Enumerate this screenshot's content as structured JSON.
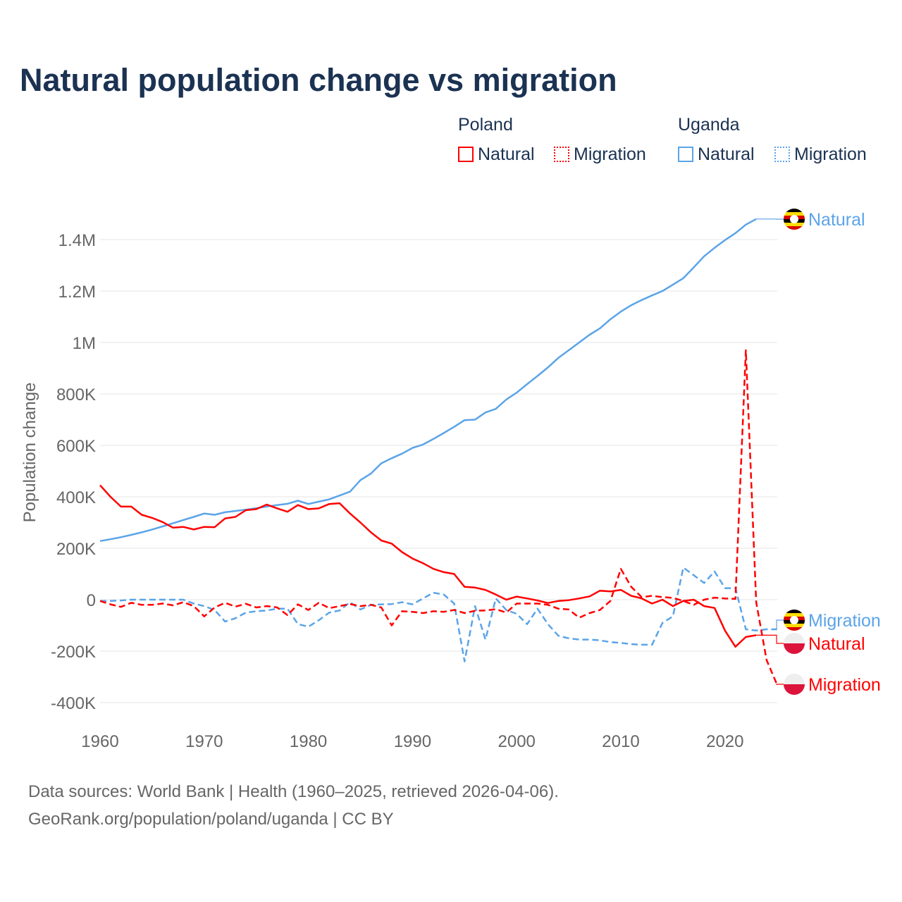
{
  "title": "Natural population change vs migration",
  "legend": {
    "groups": [
      {
        "name": "Poland",
        "items": [
          "Natural",
          "Migration"
        ]
      },
      {
        "name": "Uganda",
        "items": [
          "Natural",
          "Migration"
        ]
      }
    ]
  },
  "colors": {
    "poland": "#ff0000",
    "uganda": "#5ba4e8"
  },
  "footer": {
    "line1": "Data sources: World Bank | Health (1960–2025, retrieved 2026-04-06).",
    "line2": "GeoRank.org/population/poland/uganda | CC BY"
  },
  "chart_data": {
    "type": "line",
    "title": "Natural population change vs migration",
    "xlabel": "",
    "ylabel": "Population change",
    "xlim": [
      1960,
      2025
    ],
    "ylim": [
      -400000,
      1500000
    ],
    "x_ticks": [
      "1960",
      "1970",
      "1980",
      "1990",
      "2000",
      "2010",
      "2020"
    ],
    "y_ticks": [
      {
        "v": -400000,
        "l": "-400K"
      },
      {
        "v": -200000,
        "l": "-200K"
      },
      {
        "v": 0,
        "l": "0"
      },
      {
        "v": 200000,
        "l": "200K"
      },
      {
        "v": 400000,
        "l": "400K"
      },
      {
        "v": 600000,
        "l": "600K"
      },
      {
        "v": 800000,
        "l": "800K"
      },
      {
        "v": 1000000,
        "l": "1M"
      },
      {
        "v": 1200000,
        "l": "1.2M"
      },
      {
        "v": 1400000,
        "l": "1.4M"
      }
    ],
    "grid": true,
    "x_start": 1960,
    "series": [
      {
        "name": "Uganda Natural",
        "label": "Natural",
        "country": "uganda",
        "dash": false,
        "values": [
          228,
          235,
          243,
          252,
          262,
          273,
          285,
          297,
          310,
          322,
          335,
          330,
          340,
          345,
          350,
          356,
          362,
          368,
          373,
          385,
          372,
          381,
          390,
          405,
          420,
          465,
          490,
          530,
          550,
          568,
          590,
          603,
          625,
          648,
          672,
          698,
          700,
          728,
          742,
          778,
          805,
          838,
          870,
          903,
          940,
          970,
          1000,
          1030,
          1055,
          1090,
          1120,
          1145,
          1165,
          1183,
          1200,
          1225,
          1250,
          1292,
          1335,
          1368,
          1398,
          1425,
          1458,
          1480,
          null,
          null
        ]
      },
      {
        "name": "Uganda Migration",
        "label": "Migration",
        "country": "uganda",
        "dash": true,
        "values": [
          -5,
          -5,
          -3,
          0,
          0,
          0,
          0,
          0,
          0,
          -15,
          -25,
          -40,
          -85,
          -72,
          -50,
          -45,
          -42,
          -35,
          -35,
          -95,
          -105,
          -80,
          -50,
          -42,
          -10,
          -38,
          -20,
          -18,
          -17,
          -10,
          -18,
          5,
          27,
          20,
          -15,
          -240,
          -25,
          -155,
          5,
          -40,
          -55,
          -95,
          -35,
          -95,
          -140,
          -150,
          -155,
          -155,
          -158,
          -165,
          -168,
          -173,
          -175,
          -175,
          -90,
          -65,
          125,
          95,
          65,
          110,
          45,
          45,
          -115,
          -120,
          -115,
          -115
        ]
      },
      {
        "name": "Poland Natural",
        "label": "Natural",
        "country": "poland",
        "dash": false,
        "values": [
          445,
          400,
          362,
          362,
          330,
          318,
          302,
          280,
          283,
          273,
          283,
          282,
          316,
          322,
          348,
          352,
          370,
          355,
          342,
          368,
          352,
          355,
          372,
          375,
          335,
          300,
          262,
          230,
          218,
          185,
          160,
          142,
          120,
          107,
          100,
          50,
          47,
          38,
          20,
          0,
          12,
          5,
          -3,
          -13,
          -5,
          -2,
          5,
          13,
          35,
          32,
          38,
          15,
          5,
          -15,
          0,
          -25,
          -5,
          0,
          -25,
          -32,
          -120,
          -183,
          -145,
          -138,
          null,
          null
        ]
      },
      {
        "name": "Poland Migration",
        "label": "Migration",
        "country": "poland",
        "dash": true,
        "values": [
          -5,
          -18,
          -28,
          -12,
          -20,
          -20,
          -15,
          -22,
          -10,
          -25,
          -65,
          -30,
          -12,
          -27,
          -16,
          -30,
          -25,
          -30,
          -60,
          -18,
          -40,
          -12,
          -33,
          -25,
          -17,
          -25,
          -20,
          -30,
          -100,
          -45,
          -47,
          -52,
          -45,
          -47,
          -40,
          -52,
          -43,
          -42,
          -37,
          -50,
          -15,
          -15,
          -15,
          -20,
          -35,
          -38,
          -70,
          -52,
          -40,
          -5,
          120,
          50,
          10,
          15,
          10,
          7,
          -5,
          -20,
          0,
          8,
          5,
          3,
          970,
          -10,
          -235,
          -330
        ]
      }
    ],
    "value_unit": "thousands",
    "end_labels": [
      {
        "text": "Natural",
        "country": "uganda"
      },
      {
        "text": "Migration",
        "country": "uganda"
      },
      {
        "text": "Natural",
        "country": "poland"
      },
      {
        "text": "Migration",
        "country": "poland"
      }
    ]
  }
}
